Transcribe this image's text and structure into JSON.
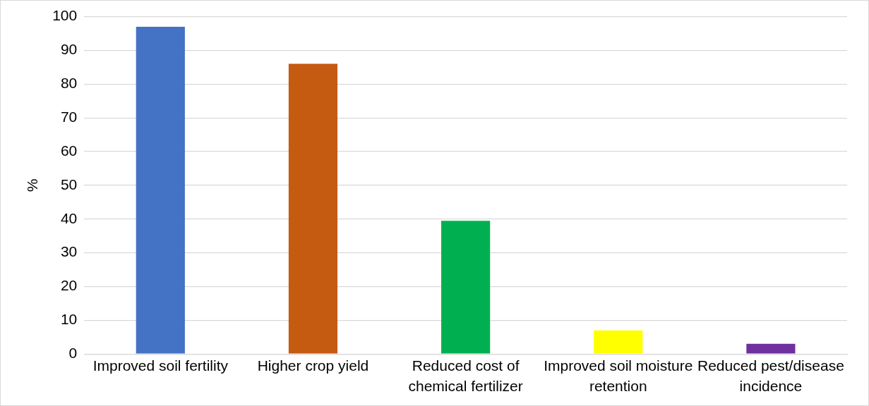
{
  "chart_data": {
    "type": "bar",
    "ylabel": "%",
    "categories": [
      "Improved soil fertility",
      "Higher crop yield",
      "Reduced cost of chemical fertilizer",
      "Improved soil moisture retention",
      "Reduced pest/disease incidence"
    ],
    "values": [
      97,
      86,
      39.5,
      7,
      3
    ],
    "colors": [
      "#4472c4",
      "#c55a11",
      "#00b050",
      "#ffff00",
      "#7030a0"
    ],
    "ylim": [
      0,
      100
    ],
    "yticks": [
      0,
      10,
      20,
      30,
      40,
      50,
      60,
      70,
      80,
      90,
      100
    ],
    "grid": "y",
    "legend": false
  }
}
